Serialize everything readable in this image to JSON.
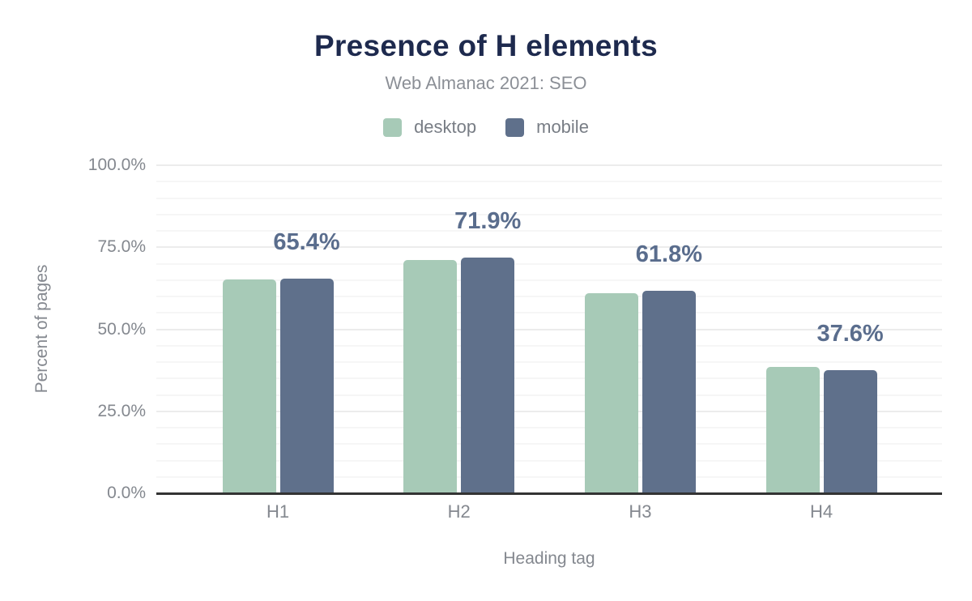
{
  "header": {
    "title": "Presence of H elements",
    "subtitle": "Web Almanac 2021: SEO"
  },
  "colors": {
    "title": "#1e2a4e",
    "subtitle": "#8b8f96",
    "axis_text": "#84888f",
    "axis_line": "#333333",
    "value_label": "#5a6d8d",
    "desktop": "#a7cab7",
    "mobile": "#5f708b",
    "grid_minor": "#f6f6f6",
    "grid_major": "#ececec"
  },
  "chart_data": {
    "type": "bar",
    "title": "Presence of H elements",
    "subtitle": "Web Almanac 2021: SEO",
    "xlabel": "Heading tag",
    "ylabel": "Percent of pages",
    "categories": [
      "H1",
      "H2",
      "H3",
      "H4"
    ],
    "series": [
      {
        "name": "desktop",
        "color": "#a7cab7",
        "values": [
          65.2,
          71.2,
          60.9,
          38.6
        ]
      },
      {
        "name": "mobile",
        "color": "#5f708b",
        "values": [
          65.4,
          71.9,
          61.8,
          37.6
        ]
      }
    ],
    "value_labels": {
      "labeled_series": "mobile",
      "texts": [
        "65.4%",
        "71.9%",
        "61.8%",
        "37.6%"
      ],
      "color": "#5a6d8d"
    },
    "ylim": [
      0,
      100
    ],
    "yticks": [
      {
        "value": 0,
        "label": "0.0%"
      },
      {
        "value": 25,
        "label": "25.0%"
      },
      {
        "value": 50,
        "label": "50.0%"
      },
      {
        "value": 75,
        "label": "75.0%"
      },
      {
        "value": 100,
        "label": "100.0%"
      }
    ],
    "grid": {
      "minor_step": 5,
      "major_step": 25,
      "grid_on": true
    },
    "legend_position": "top"
  }
}
